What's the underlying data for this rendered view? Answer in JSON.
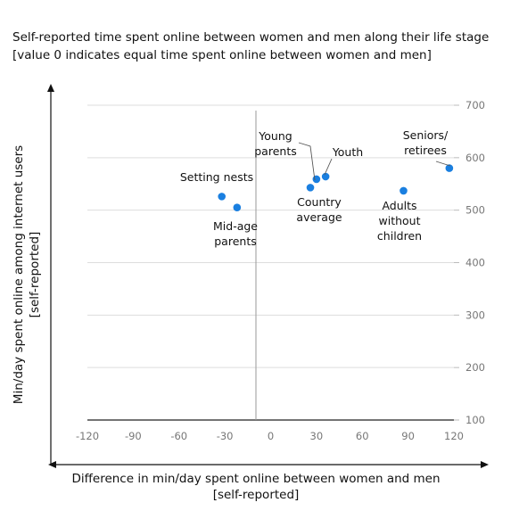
{
  "title": "Self-reported time spent online between women and men along their life stage [value 0 indicates equal time spent online between women and men]",
  "chart_data": {
    "type": "scatter",
    "title": "Self-reported time spent online between women and men along their life stage [value 0 indicates equal time spent online between women and men]",
    "xlabel": "Difference in min/day spent online between women and men [self-reported]",
    "ylabel": "Min/day spent online among internet users [self-reported]",
    "xlim": [
      -120,
      120
    ],
    "ylim": [
      100,
      700
    ],
    "xticks": [
      -120,
      -90,
      -60,
      -30,
      0,
      30,
      60,
      90,
      120
    ],
    "yticks": [
      100,
      200,
      300,
      400,
      500,
      600,
      700
    ],
    "y_axis_position": "right",
    "grid": "horizontal",
    "marker_color": "#1a7fe0",
    "points": [
      {
        "label": "Setting nests",
        "x": -32,
        "y": 526
      },
      {
        "label": "Mid-age parents",
        "x": -22,
        "y": 505
      },
      {
        "label": "Young parents",
        "x": 30,
        "y": 559
      },
      {
        "label": "Youth",
        "x": 36,
        "y": 564
      },
      {
        "label": "Country average",
        "x": 26,
        "y": 543
      },
      {
        "label": "Adults without children",
        "x": 87,
        "y": 537
      },
      {
        "label": "Seniors/ retirees",
        "x": 117,
        "y": 580
      }
    ]
  }
}
